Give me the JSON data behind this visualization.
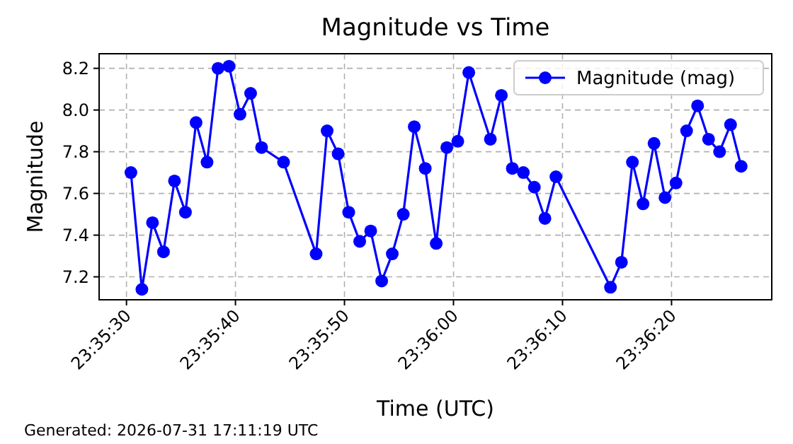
{
  "chart_data": {
    "type": "line",
    "title": "Magnitude vs Time",
    "xlabel": "Time (UTC)",
    "ylabel": "Magnitude",
    "annotations": [
      "Generated: 2026-07-31 17:11:19 UTC"
    ],
    "x": [
      23.59178,
      23.59206,
      23.59233,
      23.59261,
      23.59289,
      23.59317,
      23.59344,
      23.59372,
      23.594,
      23.59428,
      23.59456,
      23.59483,
      23.59511,
      23.59567,
      23.5965,
      23.59678,
      23.59706,
      23.59733,
      23.59761,
      23.59789,
      23.59817,
      23.59844,
      23.59872,
      23.599,
      23.59928,
      23.59956,
      23.59983,
      23.60011,
      23.60039,
      23.60094,
      23.60122,
      23.6015,
      23.60178,
      23.60206,
      23.60233,
      23.60261,
      23.604,
      23.60428,
      23.60456,
      23.60483,
      23.60511,
      23.60539,
      23.60567,
      23.60594,
      23.60622,
      23.6065,
      23.60678,
      23.60706,
      23.60733
    ],
    "series": [
      {
        "name": "Magnitude (mag)",
        "color": "#0000ff",
        "values": [
          7.7,
          7.14,
          7.46,
          7.32,
          7.66,
          7.51,
          7.94,
          7.75,
          8.2,
          8.21,
          7.98,
          8.08,
          7.82,
          7.75,
          7.31,
          7.9,
          7.79,
          7.51,
          7.37,
          7.42,
          7.18,
          7.31,
          7.5,
          7.92,
          7.72,
          7.36,
          7.82,
          7.85,
          8.18,
          7.86,
          8.07,
          7.72,
          7.7,
          7.63,
          7.48,
          7.68,
          7.15,
          7.27,
          7.75,
          7.55,
          7.84,
          7.58,
          7.65,
          7.9,
          8.02,
          7.86,
          7.8,
          7.93,
          7.73
        ]
      }
    ],
    "xlim": [
      23.59097,
      23.60811
    ],
    "xticks": [
      {
        "value": 23.591667,
        "label": "23:35:30"
      },
      {
        "value": 23.594444,
        "label": "23:35:40"
      },
      {
        "value": 23.597222,
        "label": "23:35:50"
      },
      {
        "value": 23.6,
        "label": "23:36:00"
      },
      {
        "value": 23.602778,
        "label": "23:36:10"
      },
      {
        "value": 23.605556,
        "label": "23:36:20"
      }
    ],
    "ylim": [
      7.09,
      8.27
    ],
    "yticks": [
      7.2,
      7.4,
      7.6,
      7.8,
      {
        "value": 8,
        "label": "8.0"
      },
      8.2
    ],
    "grid": true,
    "legend": "top right",
    "marker": "circle",
    "line_style": "solid"
  }
}
